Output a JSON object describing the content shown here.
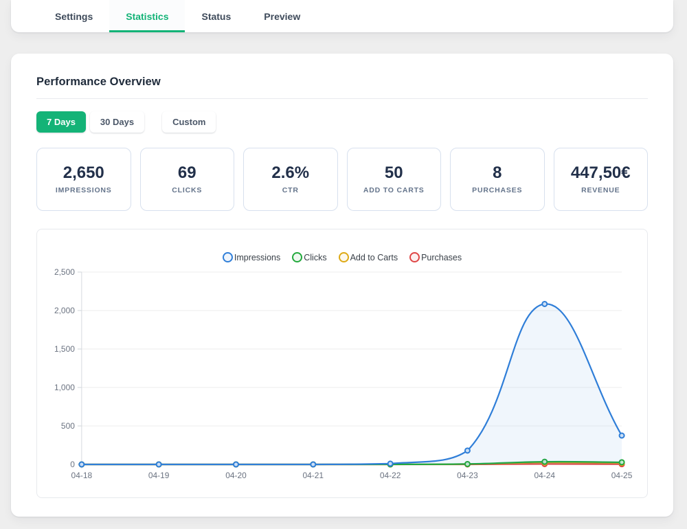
{
  "tabs": {
    "items": [
      {
        "label": "Settings",
        "active": false
      },
      {
        "label": "Statistics",
        "active": true
      },
      {
        "label": "Status",
        "active": false
      },
      {
        "label": "Preview",
        "active": false
      }
    ]
  },
  "panel": {
    "title": "Performance Overview"
  },
  "range_buttons": [
    {
      "label": "7 Days",
      "active": true
    },
    {
      "label": "30 Days",
      "active": false
    },
    {
      "label": "Custom",
      "active": false
    }
  ],
  "stats": {
    "cards": [
      {
        "value": "2,650",
        "label": "IMPRESSIONS"
      },
      {
        "value": "69",
        "label": "CLICKS"
      },
      {
        "value": "2.6%",
        "label": "CTR"
      },
      {
        "value": "50",
        "label": "ADD TO CARTS"
      },
      {
        "value": "8",
        "label": "PURCHASES"
      },
      {
        "value": "447,50€",
        "label": "REVENUE"
      }
    ]
  },
  "colors": {
    "accent_green": "#13b377",
    "stat_card_border": "#d7e0ee",
    "grid_line": "#ededed",
    "axis_label": "#6a7280"
  },
  "chart_data": {
    "type": "line",
    "x": [
      "04-18",
      "04-19",
      "04-20",
      "04-21",
      "04-22",
      "04-23",
      "04-24",
      "04-25"
    ],
    "series": [
      {
        "name": "Impressions",
        "color": "#2f7ed8",
        "area": true,
        "values": [
          0,
          0,
          0,
          0,
          10,
          180,
          2085,
          375
        ]
      },
      {
        "name": "Clicks",
        "color": "#22a93c",
        "area": false,
        "values": [
          0,
          0,
          0,
          0,
          1,
          5,
          35,
          28
        ]
      },
      {
        "name": "Add to Carts",
        "color": "#dda915",
        "area": false,
        "values": [
          0,
          0,
          0,
          0,
          0,
          5,
          25,
          20
        ]
      },
      {
        "name": "Purchases",
        "color": "#df4545",
        "area": false,
        "values": [
          0,
          0,
          0,
          0,
          0,
          0,
          5,
          3
        ]
      }
    ],
    "ylim": [
      0,
      2500
    ],
    "y_step": 500,
    "legend_position": "top",
    "grid": "horizontal"
  }
}
